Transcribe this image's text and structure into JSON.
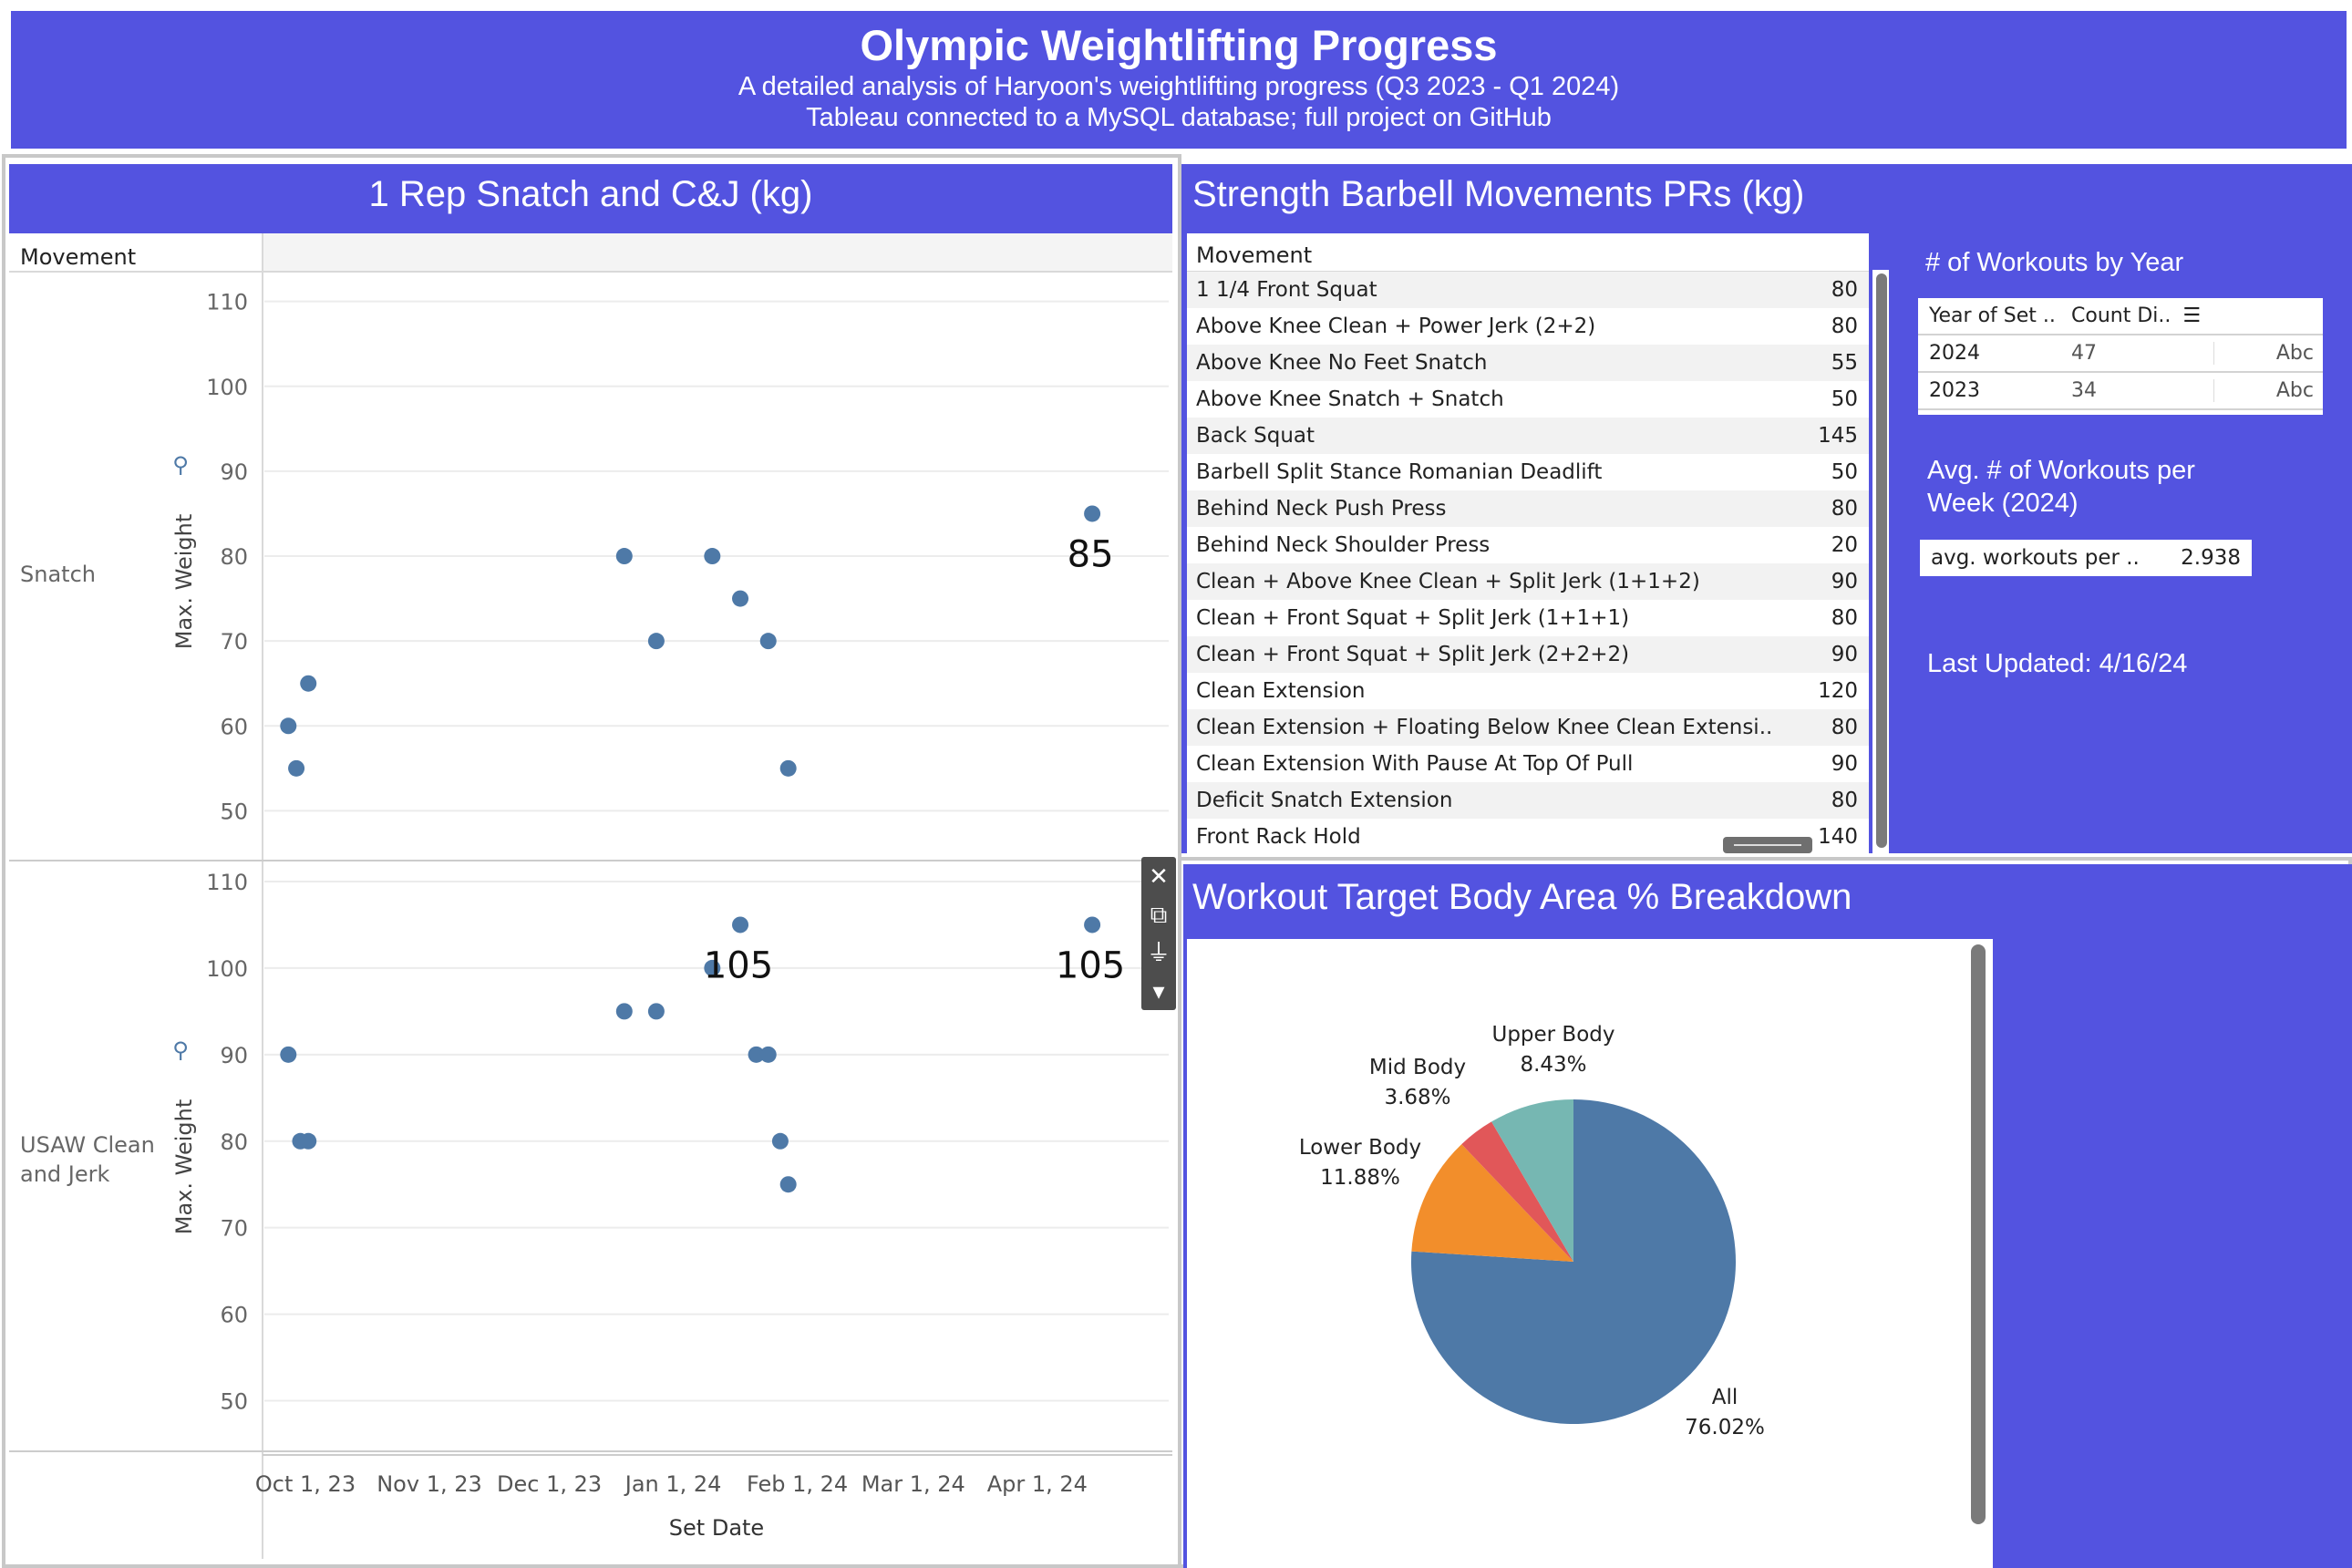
{
  "header": {
    "title": "Olympic Weightlifting Progress",
    "subtitle": "A detailed analysis of Haryoon's weightlifting progress (Q3 2023 - Q1 2024)",
    "subtitle2": "Tableau connected to a MySQL database; full project on GitHub"
  },
  "colors": {
    "accent": "#5353e0",
    "mark": "#4e79a7",
    "pie": [
      "#4e79a7",
      "#f28e2b",
      "#e15759",
      "#76b7b2"
    ]
  },
  "scatter": {
    "title": "1 Rep Snatch and C&J (kg)",
    "column_header": "Movement",
    "x_title": "Set Date",
    "y_title": "Max. Weight",
    "pin_icon": "pin-icon"
  },
  "chart_data": [
    {
      "type": "scatter",
      "panel": "Snatch",
      "title": "1 Rep Snatch and C&J (kg)",
      "xlabel": "Set Date",
      "ylabel": "Max. Weight",
      "ylim": [
        45,
        112
      ],
      "xlim": [
        "2023-09-25",
        "2024-04-25"
      ],
      "y_ticks": [
        110,
        100,
        90,
        80,
        70,
        60,
        50
      ],
      "x_ticks": [
        "Oct 1, 23",
        "Nov 1, 23",
        "Dec 1, 23",
        "Jan 1, 24",
        "Feb 1, 24",
        "Mar 1, 24",
        "Apr 1, 24"
      ],
      "grid": true,
      "points": [
        {
          "x": "2023-09-24",
          "y": 60
        },
        {
          "x": "2023-09-26",
          "y": 55
        },
        {
          "x": "2023-09-29",
          "y": 65
        },
        {
          "x": "2023-12-17",
          "y": 80
        },
        {
          "x": "2023-12-25",
          "y": 70
        },
        {
          "x": "2024-01-08",
          "y": 80
        },
        {
          "x": "2024-01-15",
          "y": 75
        },
        {
          "x": "2024-01-22",
          "y": 70
        },
        {
          "x": "2024-01-27",
          "y": 55
        },
        {
          "x": "2024-04-12",
          "y": 85
        }
      ],
      "labels": [
        {
          "x": "2024-04-12",
          "y": 85,
          "text": "85"
        }
      ]
    },
    {
      "type": "scatter",
      "panel": "USAW Clean and Jerk",
      "title": "1 Rep Snatch and C&J (kg)",
      "xlabel": "Set Date",
      "ylabel": "Max. Weight",
      "ylim": [
        45,
        112
      ],
      "xlim": [
        "2023-09-25",
        "2024-04-25"
      ],
      "y_ticks": [
        110,
        100,
        90,
        80,
        70,
        60,
        50
      ],
      "x_ticks": [
        "Oct 1, 23",
        "Nov 1, 23",
        "Dec 1, 23",
        "Jan 1, 24",
        "Feb 1, 24",
        "Mar 1, 24",
        "Apr 1, 24"
      ],
      "grid": true,
      "points": [
        {
          "x": "2023-09-24",
          "y": 90
        },
        {
          "x": "2023-09-27",
          "y": 80
        },
        {
          "x": "2023-09-29",
          "y": 80
        },
        {
          "x": "2023-12-17",
          "y": 95
        },
        {
          "x": "2023-12-25",
          "y": 95
        },
        {
          "x": "2024-01-08",
          "y": 100
        },
        {
          "x": "2024-01-15",
          "y": 105
        },
        {
          "x": "2024-01-19",
          "y": 90
        },
        {
          "x": "2024-01-22",
          "y": 90
        },
        {
          "x": "2024-01-25",
          "y": 80
        },
        {
          "x": "2024-01-27",
          "y": 75
        },
        {
          "x": "2024-04-12",
          "y": 105
        }
      ],
      "labels": [
        {
          "x": "2024-01-15",
          "y": 105,
          "text": "105"
        },
        {
          "x": "2024-04-12",
          "y": 105,
          "text": "105"
        }
      ]
    },
    {
      "type": "pie",
      "title": "Workout Target Body Area % Breakdown",
      "slices": [
        {
          "label": "All",
          "value": 76.02,
          "pct": "76.02%"
        },
        {
          "label": "Lower Body",
          "value": 11.88,
          "pct": "11.88%"
        },
        {
          "label": "Mid Body",
          "value": 3.68,
          "pct": "3.68%"
        },
        {
          "label": "Upper Body",
          "value": 8.43,
          "pct": "8.43%"
        }
      ]
    }
  ],
  "pr_table": {
    "title": "Strength Barbell Movements PRs (kg)",
    "column_header": "Movement",
    "rows": [
      {
        "name": "1 1/4 Front Squat",
        "value": "80"
      },
      {
        "name": "Above Knee Clean + Power Jerk (2+2)",
        "value": "80"
      },
      {
        "name": "Above Knee No Feet Snatch",
        "value": "55"
      },
      {
        "name": "Above Knee Snatch + Snatch",
        "value": "50"
      },
      {
        "name": "Back Squat",
        "value": "145"
      },
      {
        "name": "Barbell Split Stance Romanian Deadlift",
        "value": "50"
      },
      {
        "name": "Behind Neck Push Press",
        "value": "80"
      },
      {
        "name": "Behind Neck Shoulder Press",
        "value": "20"
      },
      {
        "name": "Clean + Above Knee Clean + Split Jerk (1+1+2)",
        "value": "90"
      },
      {
        "name": "Clean + Front Squat + Split Jerk (1+1+1)",
        "value": "80"
      },
      {
        "name": "Clean + Front Squat + Split Jerk (2+2+2)",
        "value": "90"
      },
      {
        "name": "Clean Extension",
        "value": "120"
      },
      {
        "name": "Clean Extension + Floating Below Knee Clean Extensi..",
        "value": "80"
      },
      {
        "name": "Clean Extension With Pause At Top Of Pull",
        "value": "90"
      },
      {
        "name": "Deficit Snatch Extension",
        "value": "80"
      },
      {
        "name": "Front Rack Hold",
        "value": "140"
      }
    ]
  },
  "workouts": {
    "title": "# of Workouts by Year",
    "col1": "Year of Set ..",
    "col2": "Count Di..",
    "rows": [
      {
        "year": "2024",
        "count": "47",
        "extra": "Abc"
      },
      {
        "year": "2023",
        "count": "34",
        "extra": "Abc"
      }
    ]
  },
  "avg": {
    "title": "Avg. # of Workouts per Week (2024)",
    "label": "avg. workouts per ..",
    "value": "2.938"
  },
  "updated": "Last Updated: 4/16/24",
  "pie": {
    "title": "Workout Target Body Area % Breakdown"
  }
}
